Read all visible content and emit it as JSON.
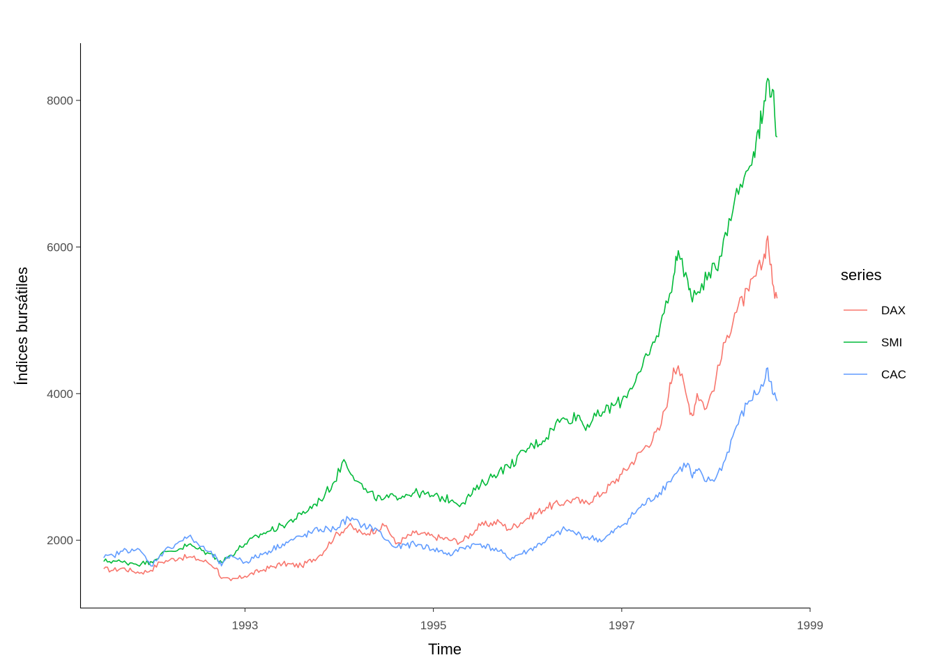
{
  "chart_data": {
    "type": "line",
    "title": "",
    "xlabel": "Time",
    "ylabel": "Índices bursátiles",
    "xlim": [
      1991.25,
      1999.0
    ],
    "ylim": [
      1080,
      8780
    ],
    "x_ticks": [
      1993,
      1995,
      1997,
      1999
    ],
    "x_tick_labels": [
      "1993",
      "1995",
      "1997",
      "1999"
    ],
    "y_ticks": [
      2000,
      4000,
      6000,
      8000
    ],
    "y_tick_labels": [
      "2000",
      "4000",
      "6000",
      "8000"
    ],
    "grid": false,
    "legend": {
      "title": "series",
      "position": "right"
    },
    "series": [
      {
        "name": "DAX",
        "color": "#F8766D",
        "x": [
          1991.5,
          1991.6,
          1991.7,
          1991.8,
          1991.9,
          1992.0,
          1992.1,
          1992.2,
          1992.3,
          1992.4,
          1992.5,
          1992.6,
          1992.7,
          1992.75,
          1992.85,
          1993.0,
          1993.2,
          1993.4,
          1993.6,
          1993.8,
          1993.95,
          1994.1,
          1994.25,
          1994.4,
          1994.5,
          1994.6,
          1994.8,
          1995.0,
          1995.2,
          1995.3,
          1995.5,
          1995.7,
          1995.8,
          1996.0,
          1996.2,
          1996.4,
          1996.5,
          1996.6,
          1996.8,
          1997.0,
          1997.2,
          1997.4,
          1997.5,
          1997.55,
          1997.6,
          1997.7,
          1997.75,
          1997.8,
          1997.9,
          1998.0,
          1998.1,
          1998.2,
          1998.35,
          1998.5,
          1998.55,
          1998.6,
          1998.65
        ],
        "values": [
          1610,
          1590,
          1620,
          1580,
          1560,
          1590,
          1700,
          1730,
          1760,
          1770,
          1740,
          1700,
          1620,
          1480,
          1450,
          1510,
          1600,
          1680,
          1650,
          1800,
          2050,
          2200,
          2080,
          2150,
          2200,
          1950,
          2100,
          2050,
          2000,
          1980,
          2200,
          2250,
          2150,
          2300,
          2450,
          2520,
          2560,
          2500,
          2650,
          2900,
          3200,
          3500,
          4000,
          4350,
          4380,
          3900,
          3700,
          4000,
          3800,
          4200,
          4700,
          5100,
          5400,
          5800,
          6150,
          5500,
          5300
        ]
      },
      {
        "name": "SMI",
        "color": "#00BA38",
        "x": [
          1991.5,
          1991.6,
          1991.7,
          1991.8,
          1991.9,
          1992.0,
          1992.1,
          1992.2,
          1992.3,
          1992.4,
          1992.5,
          1992.6,
          1992.7,
          1992.75,
          1992.85,
          1993.0,
          1993.2,
          1993.4,
          1993.6,
          1993.8,
          1993.95,
          1994.05,
          1994.2,
          1994.3,
          1994.45,
          1994.6,
          1994.8,
          1995.0,
          1995.2,
          1995.3,
          1995.5,
          1995.7,
          1995.8,
          1996.0,
          1996.2,
          1996.3,
          1996.4,
          1996.55,
          1996.6,
          1996.8,
          1997.0,
          1997.2,
          1997.35,
          1997.45,
          1997.55,
          1997.6,
          1997.7,
          1997.75,
          1997.85,
          1998.0,
          1998.1,
          1998.2,
          1998.3,
          1998.4,
          1998.45,
          1998.5,
          1998.55,
          1998.6,
          1998.65
        ],
        "values": [
          1710,
          1720,
          1700,
          1690,
          1680,
          1710,
          1800,
          1850,
          1880,
          1940,
          1880,
          1830,
          1760,
          1700,
          1800,
          1950,
          2100,
          2200,
          2350,
          2550,
          2800,
          3100,
          2800,
          2650,
          2550,
          2600,
          2650,
          2600,
          2550,
          2500,
          2750,
          2950,
          3000,
          3250,
          3400,
          3600,
          3650,
          3700,
          3550,
          3750,
          3900,
          4300,
          4700,
          5100,
          5600,
          5950,
          5550,
          5250,
          5500,
          5700,
          6200,
          6650,
          6950,
          7300,
          7600,
          7800,
          8300,
          8150,
          7500
        ]
      },
      {
        "name": "CAC",
        "color": "#619CFF",
        "x": [
          1991.5,
          1991.6,
          1991.7,
          1991.8,
          1991.9,
          1992.0,
          1992.1,
          1992.2,
          1992.3,
          1992.4,
          1992.5,
          1992.6,
          1992.7,
          1992.75,
          1992.85,
          1993.0,
          1993.2,
          1993.4,
          1993.6,
          1993.8,
          1993.95,
          1994.1,
          1994.25,
          1994.4,
          1994.5,
          1994.6,
          1994.8,
          1995.0,
          1995.2,
          1995.3,
          1995.5,
          1995.7,
          1995.8,
          1996.0,
          1996.2,
          1996.4,
          1996.5,
          1996.6,
          1996.8,
          1997.0,
          1997.2,
          1997.4,
          1997.5,
          1997.6,
          1997.7,
          1997.75,
          1997.8,
          1997.9,
          1998.0,
          1998.1,
          1998.2,
          1998.35,
          1998.5,
          1998.55,
          1998.6,
          1998.65
        ],
        "values": [
          1760,
          1790,
          1850,
          1880,
          1840,
          1650,
          1800,
          1900,
          1980,
          2050,
          1950,
          1850,
          1750,
          1650,
          1800,
          1700,
          1820,
          1950,
          2050,
          2150,
          2150,
          2300,
          2200,
          2150,
          2000,
          1900,
          1950,
          1880,
          1800,
          1900,
          1950,
          1850,
          1750,
          1850,
          2000,
          2150,
          2100,
          2050,
          2000,
          2200,
          2450,
          2650,
          2800,
          2950,
          3050,
          2850,
          2950,
          2800,
          2850,
          3100,
          3500,
          3900,
          4100,
          4350,
          4000,
          3900
        ]
      }
    ]
  }
}
